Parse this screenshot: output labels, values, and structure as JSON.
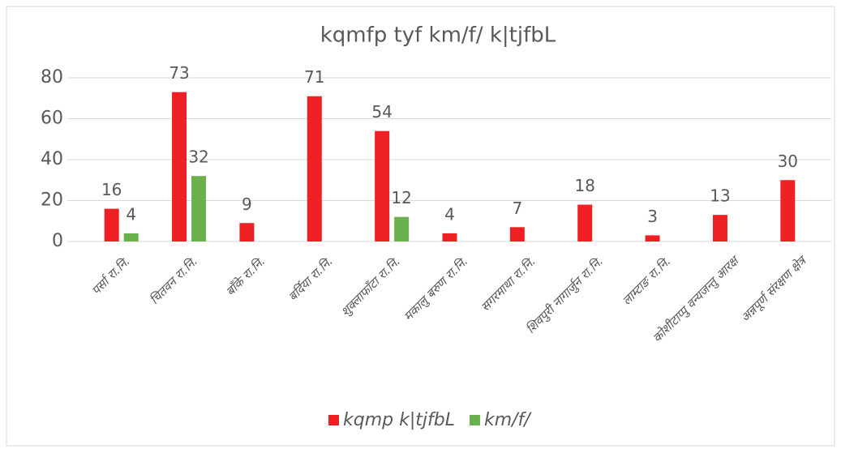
{
  "chart_data": {
    "type": "bar",
    "title": "kqmfp tyf km/f/ k|tjfbL",
    "categories": [
      "पर्सा रा.नि.",
      "चितवन रा.नि.",
      "बाँके रा.नि.",
      "बर्दिया रा.नि.",
      "शुक्लाफाँटा रा.नि.",
      "मकालु बरुण रा.नि.",
      "सगरमाथा रा.नि.",
      "शिवपुरी नागार्जुन रा.नि.",
      "लाम्टाङ रा.नि.",
      "कोशीटाप्पु वन्यजन्तु आरक्ष",
      "अन्नपूर्ण संरक्षण क्षेत्र"
    ],
    "series": [
      {
        "name": "kqmp k|tjfbL",
        "color": "#ee2024",
        "values": [
          16,
          73,
          9,
          71,
          54,
          4,
          7,
          18,
          3,
          13,
          30
        ]
      },
      {
        "name": "km/f/",
        "color": "#6ab04c",
        "values": [
          4,
          32,
          null,
          null,
          12,
          null,
          null,
          null,
          null,
          null,
          null
        ]
      }
    ],
    "ylim": [
      0,
      80
    ],
    "yticks": [
      0,
      20,
      40,
      60,
      80
    ],
    "grid": true,
    "legend": "bottom"
  }
}
